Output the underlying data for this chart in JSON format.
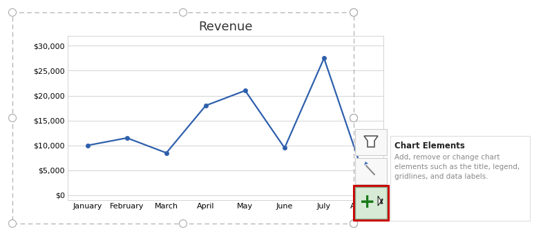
{
  "title": "Revenue",
  "months": [
    "January",
    "February",
    "March",
    "April",
    "May",
    "June",
    "July",
    "August"
  ],
  "values": [
    10000,
    11500,
    8500,
    18000,
    21000,
    9500,
    27500,
    4200
  ],
  "line_color": "#2E5FAC",
  "marker_color": "#2E5FAC",
  "bg_color": "#FFFFFF",
  "plot_bg_color": "#FFFFFF",
  "grid_color": "#D3D3D3",
  "yticks": [
    0,
    5000,
    10000,
    15000,
    20000,
    25000,
    30000
  ],
  "ylim": [
    -1000,
    32000
  ],
  "title_fontsize": 13,
  "tick_fontsize": 8,
  "chart_elements_title": "Chart Elements",
  "chart_elements_text": "Add, remove or change chart\nelements such as the title, legend,\ngridlines, and data labels.",
  "border_color": "#AAAAAA",
  "red_border": "#CC0000",
  "green_fill": "#D6EAD6",
  "green_border": "#88AA88",
  "plus_color": "#1A7A1A",
  "tooltip_text_color": "#888888"
}
